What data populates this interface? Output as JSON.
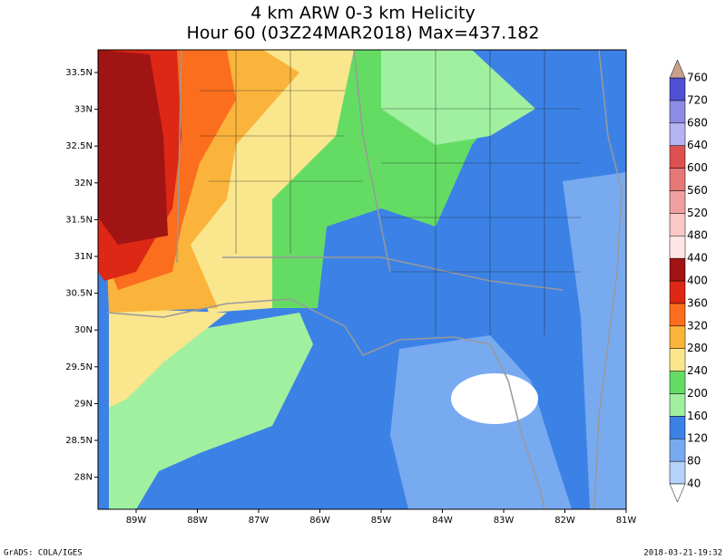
{
  "title": [
    "4 km ARW 0-3 km Helicity",
    "Hour 60 (03Z24MAR2018) Max=437.182"
  ],
  "lat_labels": [
    "33.5N",
    "33N",
    "32.5N",
    "32N",
    "31.5N",
    "31N",
    "30.5N",
    "30N",
    "29.5N",
    "29N",
    "28.5N",
    "28N"
  ],
  "lon_labels": [
    "89W",
    "88W",
    "87W",
    "86W",
    "85W",
    "84W",
    "83W",
    "82W",
    "81W"
  ],
  "colorbar": {
    "labels": [
      "40",
      "80",
      "120",
      "160",
      "200",
      "240",
      "280",
      "320",
      "360",
      "400",
      "440",
      "480",
      "520",
      "560",
      "600",
      "640",
      "680",
      "720",
      "760"
    ],
    "colors": [
      "#b4d2fa",
      "#78aaf0",
      "#3c82e6",
      "#a0f0a0",
      "#64dc64",
      "#fae68c",
      "#fab43c",
      "#fa6e1e",
      "#dc2814",
      "#a01414",
      "#ffe6e6",
      "#fac8c8",
      "#f0a0a0",
      "#e67878",
      "#dc5050",
      "#b4b4f0",
      "#8c8ce6",
      "#5050d2"
    ],
    "under_color": "#ffffff",
    "over_color": "#c8a08c"
  },
  "footer": {
    "left": "GrADS: COLA/IGES",
    "right": "2018-03-21-19:32"
  }
}
